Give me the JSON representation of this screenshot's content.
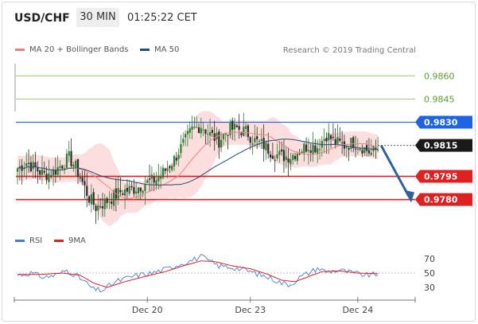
{
  "header": {
    "pair": "USD/CHF",
    "timeframe": "30 MIN",
    "time": "01:25:22 CET"
  },
  "legend_main": [
    {
      "label": "MA 20 + Bollinger Bands",
      "color": "#f08080"
    },
    {
      "label": "MA 50",
      "color": "#1f4e79"
    }
  ],
  "legend_rsi": [
    {
      "label": "RSI",
      "color": "#4a7bd0"
    },
    {
      "label": "9MA",
      "color": "#e02020"
    }
  ],
  "credit": "Research © 2019 Trading Central",
  "colors": {
    "up_candle": "#2e7d32",
    "down_candle": "#2b2b2b",
    "band_fill": "#fbd3d3",
    "ma20": "#f08080",
    "ma50": "#1f4e79",
    "target_line": "#9ccc65",
    "pivot_line": "#1e63e6",
    "support_line": "#e02020",
    "arrow": "#2f5f9e",
    "current_tag": "#1a1a1a"
  },
  "chart_data": {
    "type": "candlestick",
    "ylim": [
      0.9769,
      0.9872
    ],
    "x_ticks": [
      "Dec 20",
      "Dec 23",
      "Dec 24"
    ],
    "levels": [
      {
        "value": 0.986,
        "label": "0.9860",
        "kind": "target"
      },
      {
        "value": 0.9845,
        "label": "0.9845",
        "kind": "target"
      },
      {
        "value": 0.983,
        "label": "0.9830",
        "kind": "pivot"
      },
      {
        "value": 0.9815,
        "label": "0.9815",
        "kind": "current"
      },
      {
        "value": 0.9795,
        "label": "0.9795",
        "kind": "support"
      },
      {
        "value": 0.978,
        "label": "0.9780",
        "kind": "support"
      }
    ],
    "projection": {
      "from": 0.9815,
      "to": 0.978
    },
    "anchors": [
      [
        0,
        0.98
      ],
      [
        4,
        0.9804
      ],
      [
        8,
        0.98
      ],
      [
        12,
        0.9796
      ],
      [
        16,
        0.9798
      ],
      [
        20,
        0.9803
      ],
      [
        23,
        0.9807
      ],
      [
        26,
        0.9801
      ],
      [
        29,
        0.9791
      ],
      [
        32,
        0.9781
      ],
      [
        35,
        0.9775
      ],
      [
        40,
        0.9779
      ],
      [
        46,
        0.9785
      ],
      [
        52,
        0.9787
      ],
      [
        58,
        0.9791
      ],
      [
        62,
        0.9793
      ],
      [
        66,
        0.9799
      ],
      [
        70,
        0.9806
      ],
      [
        74,
        0.9816
      ],
      [
        78,
        0.9825
      ],
      [
        82,
        0.9828
      ],
      [
        86,
        0.9822
      ],
      [
        90,
        0.9818
      ],
      [
        94,
        0.9825
      ],
      [
        98,
        0.9826
      ],
      [
        102,
        0.9824
      ],
      [
        106,
        0.9818
      ],
      [
        110,
        0.9815
      ],
      [
        114,
        0.981
      ],
      [
        118,
        0.9808
      ],
      [
        122,
        0.9808
      ],
      [
        126,
        0.9812
      ],
      [
        130,
        0.9815
      ],
      [
        134,
        0.9814
      ],
      [
        138,
        0.9822
      ],
      [
        142,
        0.9817
      ],
      [
        146,
        0.9815
      ],
      [
        150,
        0.9817
      ],
      [
        154,
        0.9814
      ],
      [
        158,
        0.981
      ],
      [
        161,
        0.9813
      ]
    ],
    "rsi": {
      "ylim": [
        20,
        80
      ],
      "ticks": [
        70,
        50,
        30
      ],
      "anchors": [
        [
          0,
          47
        ],
        [
          6,
          50
        ],
        [
          12,
          44
        ],
        [
          18,
          48
        ],
        [
          22,
          54
        ],
        [
          26,
          47
        ],
        [
          30,
          38
        ],
        [
          34,
          27
        ],
        [
          38,
          26
        ],
        [
          44,
          38
        ],
        [
          52,
          46
        ],
        [
          60,
          50
        ],
        [
          66,
          55
        ],
        [
          72,
          62
        ],
        [
          78,
          68
        ],
        [
          82,
          73
        ],
        [
          86,
          66
        ],
        [
          90,
          60
        ],
        [
          96,
          58
        ],
        [
          102,
          54
        ],
        [
          108,
          48
        ],
        [
          114,
          42
        ],
        [
          118,
          36
        ],
        [
          122,
          34
        ],
        [
          126,
          44
        ],
        [
          130,
          50
        ],
        [
          134,
          57
        ],
        [
          138,
          52
        ],
        [
          144,
          54
        ],
        [
          150,
          50
        ],
        [
          156,
          47
        ],
        [
          161,
          48
        ]
      ],
      "ma_anchors": [
        [
          0,
          48
        ],
        [
          10,
          48
        ],
        [
          20,
          50
        ],
        [
          28,
          47
        ],
        [
          34,
          36
        ],
        [
          40,
          30
        ],
        [
          48,
          38
        ],
        [
          58,
          46
        ],
        [
          66,
          52
        ],
        [
          74,
          60
        ],
        [
          82,
          67
        ],
        [
          88,
          66
        ],
        [
          96,
          60
        ],
        [
          104,
          56
        ],
        [
          112,
          48
        ],
        [
          118,
          40
        ],
        [
          124,
          38
        ],
        [
          130,
          45
        ],
        [
          136,
          52
        ],
        [
          144,
          53
        ],
        [
          152,
          50
        ],
        [
          161,
          49
        ]
      ]
    }
  }
}
